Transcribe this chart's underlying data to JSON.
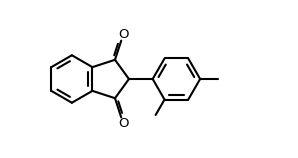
{
  "bg_color": "#ffffff",
  "line_color": "#000000",
  "line_width": 1.5,
  "figsize": [
    2.98,
    1.58
  ],
  "dpi": 100,
  "O_fontsize": 9.5
}
